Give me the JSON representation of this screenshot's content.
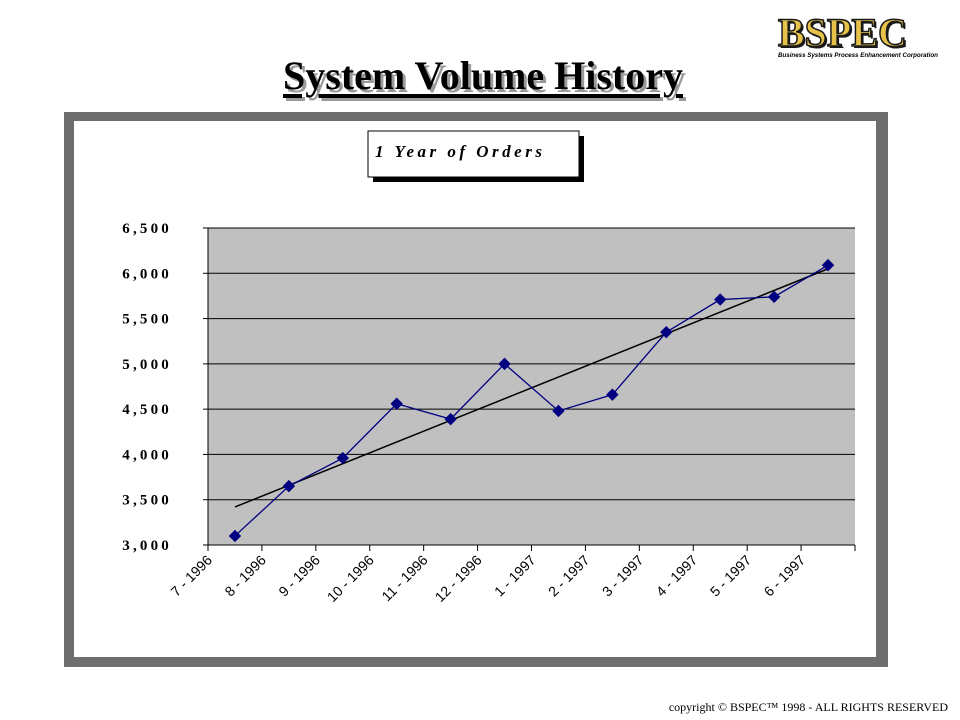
{
  "page": {
    "title": "System Volume History",
    "footer": "copyright © BSPEC™ 1998 - ALL RIGHTS RESERVED"
  },
  "logo": {
    "name": "BSPEC",
    "tagline": "Business Systems Process Enhancement Corporation"
  },
  "colors": {
    "plot_background": "#c0c0c0",
    "series_line": "#000080",
    "trend_line": "#000000",
    "frame": "#6e6e6e"
  },
  "chart_data": {
    "type": "line",
    "title": "1 Year of Orders",
    "categories": [
      "7 - 1996",
      "8 - 1996",
      "9 - 1996",
      "10 - 1996",
      "11 - 1996",
      "12 - 1996",
      "1 - 1997",
      "2 - 1997",
      "3 - 1997",
      "4 - 1997",
      "5 - 1997",
      "6 - 1997"
    ],
    "series": [
      {
        "values": [
          3100,
          3650,
          3960,
          4560,
          4390,
          5000,
          4480,
          4660,
          5350,
          5710,
          5740,
          6090
        ]
      }
    ],
    "trendline": {
      "type": "linear",
      "start": 3420,
      "end": 6050
    },
    "yticks": [
      "3,000",
      "3,500",
      "4,000",
      "4,500",
      "5,000",
      "5,500",
      "6,000",
      "6,500"
    ],
    "ylim": [
      3000,
      6500
    ],
    "grid": true,
    "legend": "none",
    "xlabel": "",
    "ylabel": ""
  }
}
